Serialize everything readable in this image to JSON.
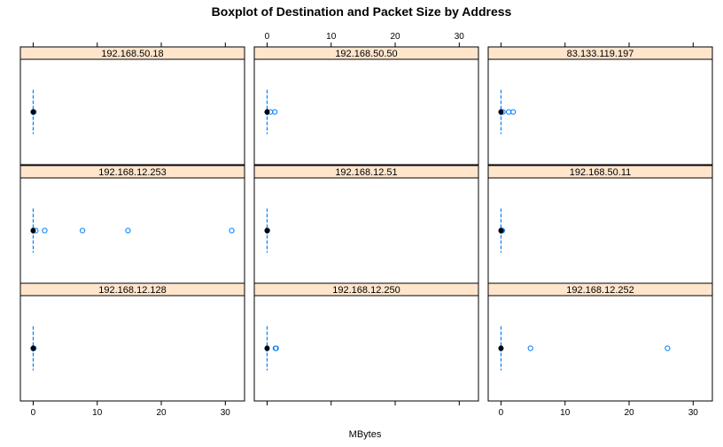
{
  "chart_data": {
    "type": "boxplot",
    "title": "Boxplot of Destination and Packet Size by Address",
    "xlabel": "MBytes",
    "ylabel": "",
    "xlim": [
      -2,
      33
    ],
    "x_ticks": [
      "0",
      "10",
      "20",
      "30"
    ],
    "layout": {
      "columns": 3,
      "rows": 3
    },
    "colors": {
      "strip": "#ffe5cc",
      "box": "#0080ff",
      "median": "#000000",
      "outlier": "#0080ff",
      "frame": "#000000"
    },
    "panels": [
      {
        "label": "192.168.50.18",
        "row": 0,
        "col": 0,
        "min": 0,
        "q1": 0,
        "median": 0,
        "q3": 0,
        "max": 0,
        "outliers": [
          0.05,
          0.1
        ]
      },
      {
        "label": "192.168.50.50",
        "row": 0,
        "col": 1,
        "min": 0,
        "q1": 0,
        "median": 0,
        "q3": 0.05,
        "max": 0.1,
        "outliers": [
          0.5,
          1.2
        ]
      },
      {
        "label": "83.133.119.197",
        "row": 0,
        "col": 2,
        "min": 0,
        "q1": 0,
        "median": 0,
        "q3": 0,
        "max": 0.1,
        "outliers": [
          0.3,
          1.2,
          1.9
        ]
      },
      {
        "label": "192.168.12.253",
        "row": 1,
        "col": 0,
        "min": 0,
        "q1": 0,
        "median": 0,
        "q3": 0,
        "max": 0.1,
        "outliers": [
          0.4,
          1.8,
          7.7,
          14.8,
          31.0
        ]
      },
      {
        "label": "192.168.12.51",
        "row": 1,
        "col": 1,
        "min": 0,
        "q1": 0,
        "median": 0,
        "q3": 0,
        "max": 0,
        "outliers": [
          0.05
        ]
      },
      {
        "label": "192.168.50.11",
        "row": 1,
        "col": 2,
        "min": 0,
        "q1": 0,
        "median": 0,
        "q3": 0,
        "max": 0,
        "outliers": [
          0.1,
          0.2
        ]
      },
      {
        "label": "192.168.12.128",
        "row": 2,
        "col": 0,
        "min": 0,
        "q1": 0,
        "median": 0,
        "q3": 0,
        "max": 0,
        "outliers": [
          0.1
        ]
      },
      {
        "label": "192.168.12.250",
        "row": 2,
        "col": 1,
        "min": 0,
        "q1": 0,
        "median": 0,
        "q3": 0,
        "max": 0,
        "outliers": [
          1.3,
          1.4
        ]
      },
      {
        "label": "192.168.12.252",
        "row": 2,
        "col": 2,
        "min": 0,
        "q1": 0,
        "median": 0,
        "q3": 0,
        "max": 0,
        "outliers": [
          4.6,
          26.0
        ]
      }
    ]
  }
}
